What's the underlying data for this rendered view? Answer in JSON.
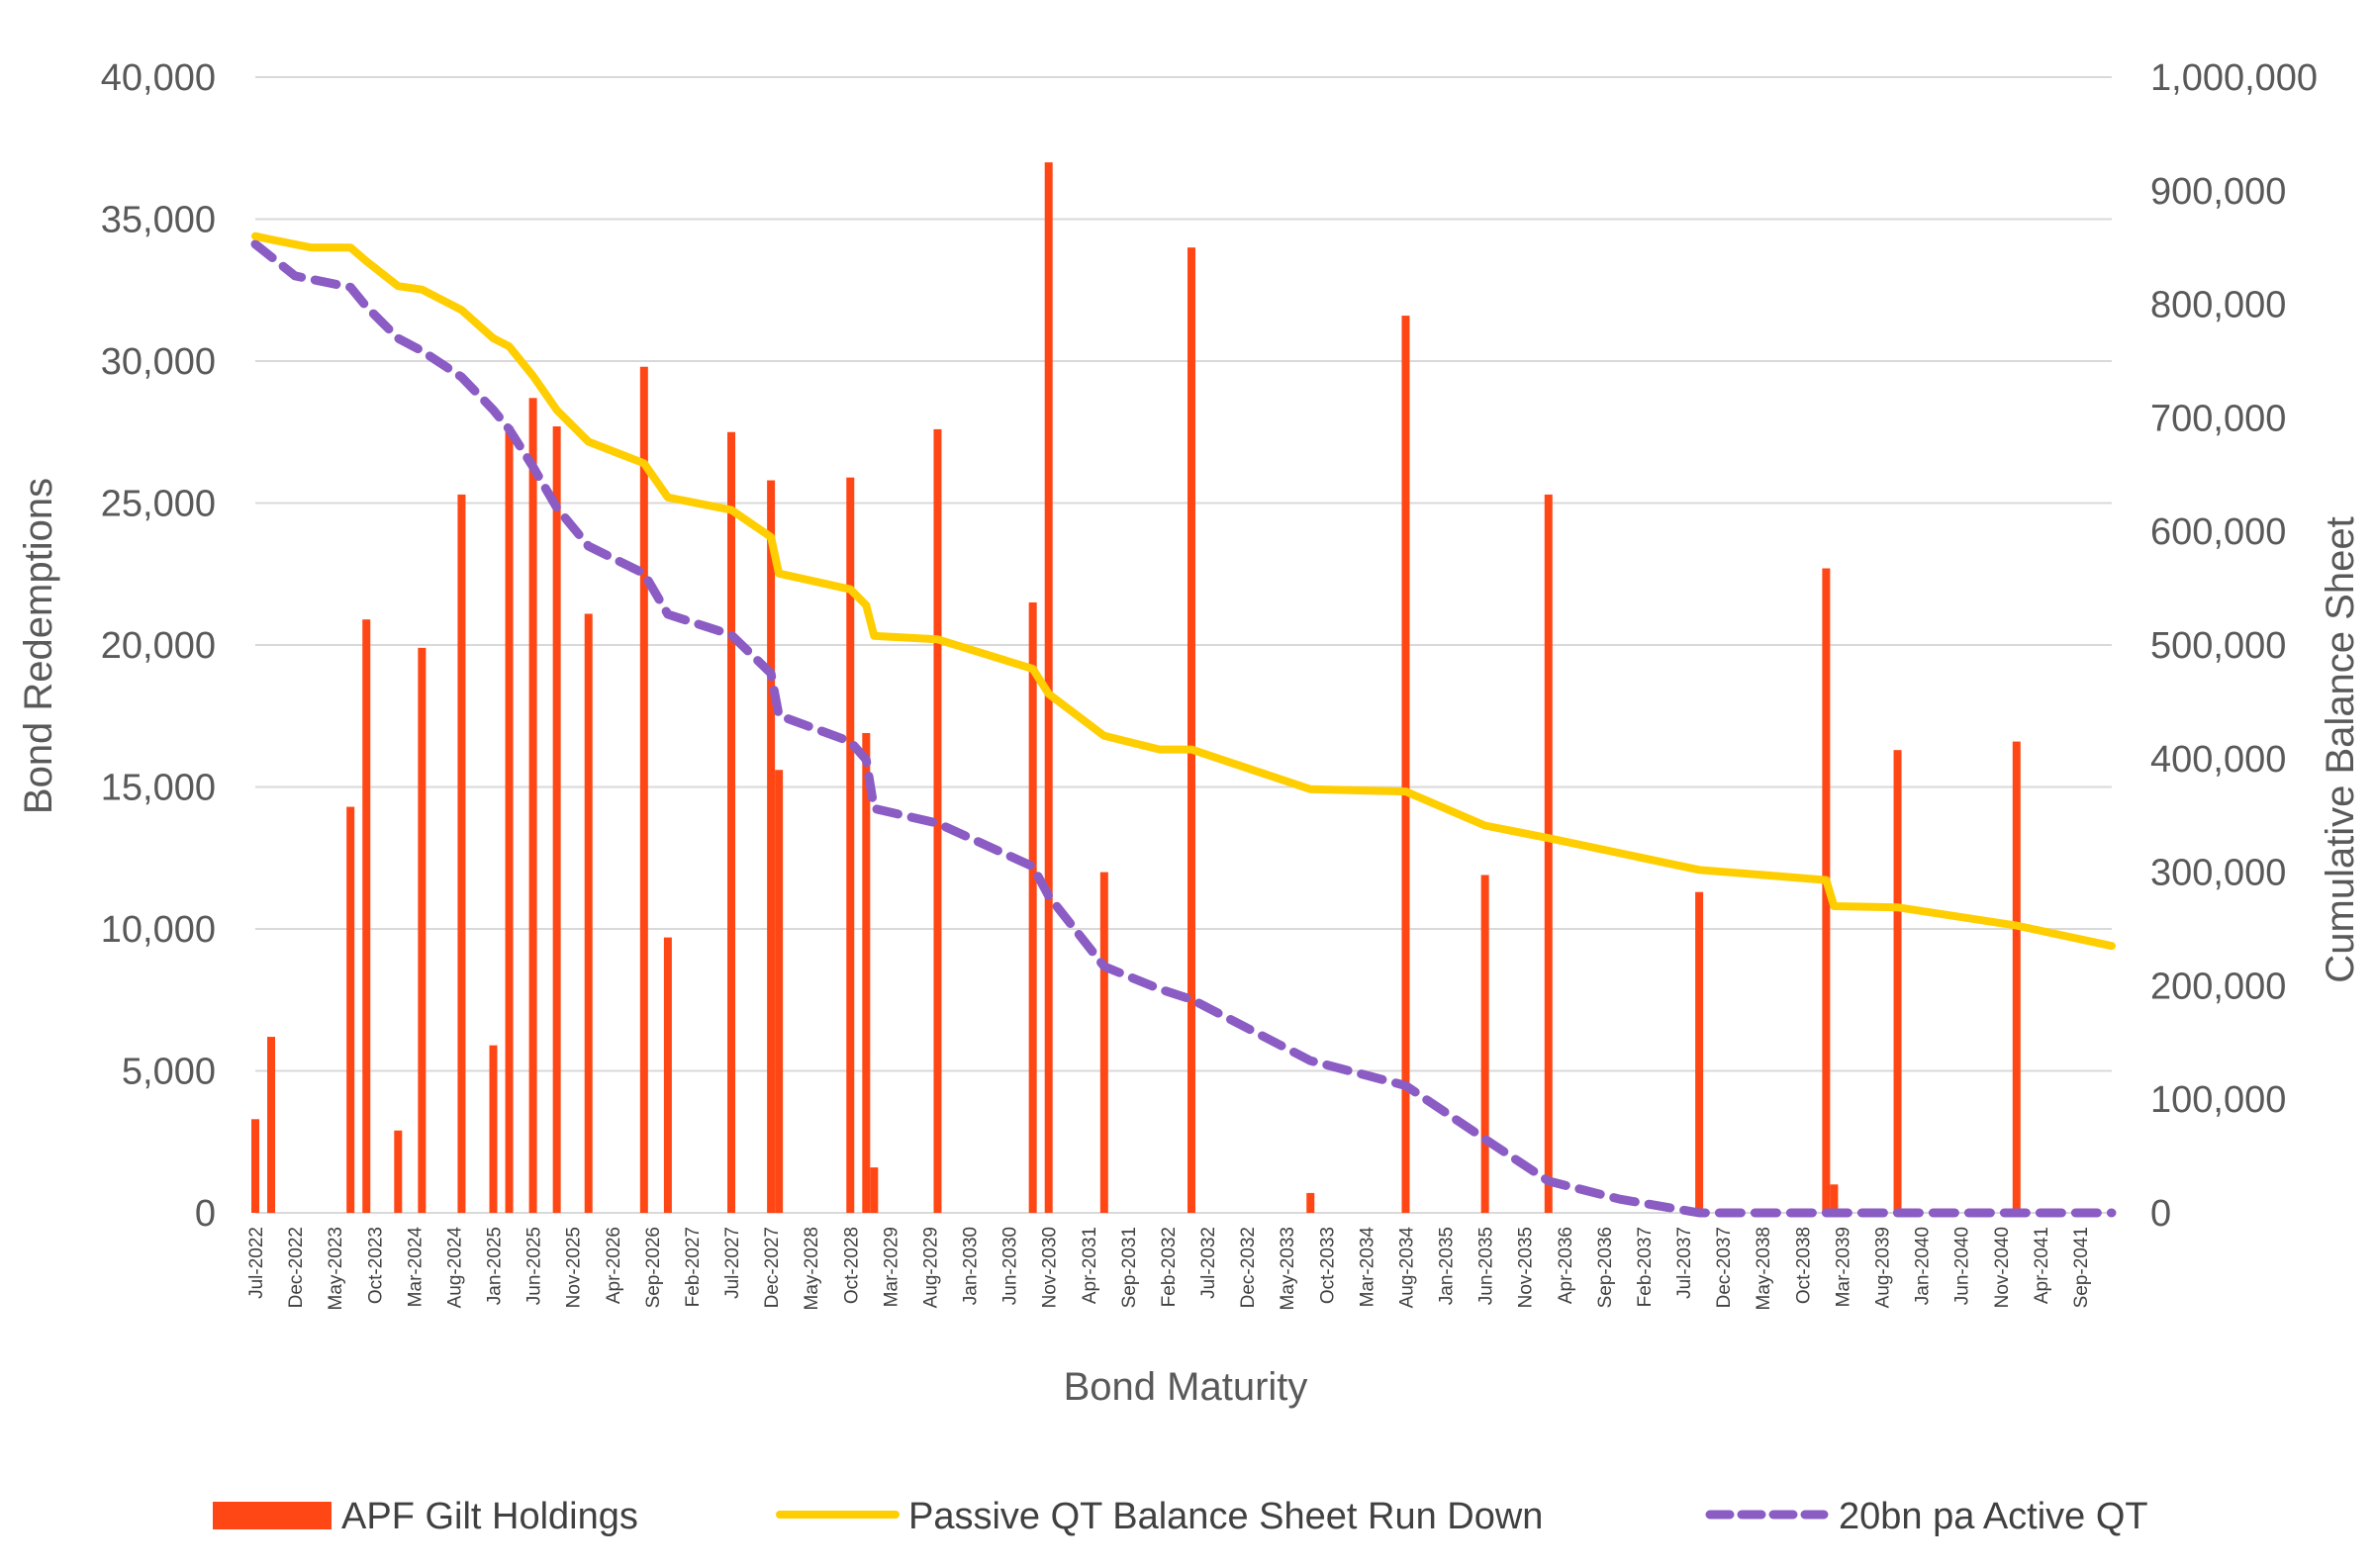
{
  "chart_data": {
    "type": "bar",
    "title": "",
    "xlabel": "Bond Maturity",
    "ylabel_left": "Bond Redemptions",
    "ylabel_right": "Cumulative Balance Sheet",
    "ylim_left": [
      0,
      40000
    ],
    "ylim_right": [
      0,
      1000000
    ],
    "yticks_left": [
      "0",
      "5,000",
      "10,000",
      "15,000",
      "20,000",
      "25,000",
      "30,000",
      "35,000",
      "40,000"
    ],
    "yticks_right": [
      "0",
      "100,000",
      "200,000",
      "300,000",
      "400,000",
      "500,000",
      "600,000",
      "700,000",
      "800,000",
      "900,000",
      "1,000,000"
    ],
    "xlim": [
      0,
      234
    ],
    "x_ticks": [
      "Jul-2022",
      "Dec-2022",
      "May-2023",
      "Oct-2023",
      "Mar-2024",
      "Aug-2024",
      "Jan-2025",
      "Jun-2025",
      "Nov-2025",
      "Apr-2026",
      "Sep-2026",
      "Feb-2027",
      "Jul-2027",
      "Dec-2027",
      "May-2028",
      "Oct-2028",
      "Mar-2029",
      "Aug-2029",
      "Jan-2030",
      "Jun-2030",
      "Nov-2030",
      "Apr-2031",
      "Sep-2031",
      "Feb-2032",
      "Jul-2032",
      "Dec-2032",
      "May-2033",
      "Oct-2033",
      "Mar-2034",
      "Aug-2034",
      "Jan-2035",
      "Jun-2035",
      "Nov-2035",
      "Apr-2036",
      "Sep-2036",
      "Feb-2037",
      "Jul-2037",
      "Dec-2037",
      "May-2038",
      "Oct-2038",
      "Mar-2039",
      "Aug-2039",
      "Jan-2040",
      "Jun-2040",
      "Nov-2040",
      "Apr-2041",
      "Sep-2041"
    ],
    "grid": true,
    "legend_position": "bottom",
    "colors": {
      "bars": "#FF4715",
      "passive": "#FFCE00",
      "active": "#8B5CC4",
      "grid": "#D9D9D9",
      "text": "#595959"
    },
    "series": [
      {
        "name": "APF Gilt Holdings",
        "type": "bar",
        "axis": "left",
        "points": [
          {
            "x": 0,
            "y": 3300
          },
          {
            "x": 2,
            "y": 6200
          },
          {
            "x": 12,
            "y": 14300
          },
          {
            "x": 14,
            "y": 20900
          },
          {
            "x": 18,
            "y": 2900
          },
          {
            "x": 21,
            "y": 19900
          },
          {
            "x": 26,
            "y": 25300
          },
          {
            "x": 30,
            "y": 5900
          },
          {
            "x": 32,
            "y": 27700
          },
          {
            "x": 35,
            "y": 28700
          },
          {
            "x": 38,
            "y": 27700
          },
          {
            "x": 42,
            "y": 21100
          },
          {
            "x": 49,
            "y": 29800
          },
          {
            "x": 52,
            "y": 9700
          },
          {
            "x": 60,
            "y": 27500
          },
          {
            "x": 65,
            "y": 25800
          },
          {
            "x": 66,
            "y": 15600
          },
          {
            "x": 75,
            "y": 25900
          },
          {
            "x": 77,
            "y": 16900
          },
          {
            "x": 78,
            "y": 1600
          },
          {
            "x": 86,
            "y": 27600
          },
          {
            "x": 98,
            "y": 21500
          },
          {
            "x": 100,
            "y": 37000
          },
          {
            "x": 107,
            "y": 12000
          },
          {
            "x": 118,
            "y": 34000
          },
          {
            "x": 133,
            "y": 700
          },
          {
            "x": 145,
            "y": 31600
          },
          {
            "x": 155,
            "y": 11900
          },
          {
            "x": 163,
            "y": 25300
          },
          {
            "x": 182,
            "y": 11300
          },
          {
            "x": 198,
            "y": 22700
          },
          {
            "x": 199,
            "y": 1000
          },
          {
            "x": 207,
            "y": 16300
          },
          {
            "x": 222,
            "y": 16600
          }
        ]
      },
      {
        "name": "Passive QT Balance Sheet Run Down",
        "type": "line",
        "axis": "right",
        "points": [
          {
            "x": 0,
            "y": 860000
          },
          {
            "x": 2,
            "y": 857000
          },
          {
            "x": 7,
            "y": 850000
          },
          {
            "x": 12,
            "y": 850000
          },
          {
            "x": 14,
            "y": 838000
          },
          {
            "x": 18,
            "y": 816000
          },
          {
            "x": 21,
            "y": 813000
          },
          {
            "x": 26,
            "y": 795000
          },
          {
            "x": 30,
            "y": 770000
          },
          {
            "x": 32,
            "y": 763000
          },
          {
            "x": 35,
            "y": 737000
          },
          {
            "x": 38,
            "y": 707000
          },
          {
            "x": 42,
            "y": 679000
          },
          {
            "x": 49,
            "y": 660000
          },
          {
            "x": 52,
            "y": 630000
          },
          {
            "x": 60,
            "y": 619000
          },
          {
            "x": 65,
            "y": 595000
          },
          {
            "x": 66,
            "y": 563000
          },
          {
            "x": 75,
            "y": 549000
          },
          {
            "x": 77,
            "y": 535000
          },
          {
            "x": 78,
            "y": 508000
          },
          {
            "x": 86,
            "y": 505000
          },
          {
            "x": 98,
            "y": 479000
          },
          {
            "x": 100,
            "y": 457000
          },
          {
            "x": 107,
            "y": 420000
          },
          {
            "x": 114,
            "y": 408000
          },
          {
            "x": 118,
            "y": 408000
          },
          {
            "x": 133,
            "y": 373000
          },
          {
            "x": 145,
            "y": 371000
          },
          {
            "x": 155,
            "y": 341000
          },
          {
            "x": 163,
            "y": 330000
          },
          {
            "x": 182,
            "y": 302000
          },
          {
            "x": 198,
            "y": 293000
          },
          {
            "x": 199,
            "y": 270000
          },
          {
            "x": 207,
            "y": 269000
          },
          {
            "x": 222,
            "y": 253000
          },
          {
            "x": 234,
            "y": 235000
          }
        ]
      },
      {
        "name": "20bn pa Active QT",
        "type": "line",
        "axis": "right",
        "dashed": true,
        "points": [
          {
            "x": 0,
            "y": 853000
          },
          {
            "x": 5,
            "y": 825000
          },
          {
            "x": 12,
            "y": 815000
          },
          {
            "x": 14,
            "y": 798000
          },
          {
            "x": 18,
            "y": 770000
          },
          {
            "x": 21,
            "y": 759000
          },
          {
            "x": 26,
            "y": 736000
          },
          {
            "x": 30,
            "y": 707000
          },
          {
            "x": 32,
            "y": 690000
          },
          {
            "x": 35,
            "y": 657000
          },
          {
            "x": 38,
            "y": 621000
          },
          {
            "x": 42,
            "y": 587000
          },
          {
            "x": 49,
            "y": 563000
          },
          {
            "x": 52,
            "y": 527000
          },
          {
            "x": 60,
            "y": 509000
          },
          {
            "x": 65,
            "y": 475000
          },
          {
            "x": 66,
            "y": 438000
          },
          {
            "x": 75,
            "y": 415000
          },
          {
            "x": 77,
            "y": 399000
          },
          {
            "x": 78,
            "y": 356000
          },
          {
            "x": 86,
            "y": 343000
          },
          {
            "x": 98,
            "y": 305000
          },
          {
            "x": 100,
            "y": 279000
          },
          {
            "x": 107,
            "y": 217000
          },
          {
            "x": 114,
            "y": 197000
          },
          {
            "x": 118,
            "y": 188000
          },
          {
            "x": 133,
            "y": 134000
          },
          {
            "x": 145,
            "y": 112000
          },
          {
            "x": 155,
            "y": 65000
          },
          {
            "x": 163,
            "y": 28000
          },
          {
            "x": 172,
            "y": 12000
          },
          {
            "x": 182,
            "y": 0
          },
          {
            "x": 234,
            "y": 0
          }
        ]
      }
    ]
  }
}
